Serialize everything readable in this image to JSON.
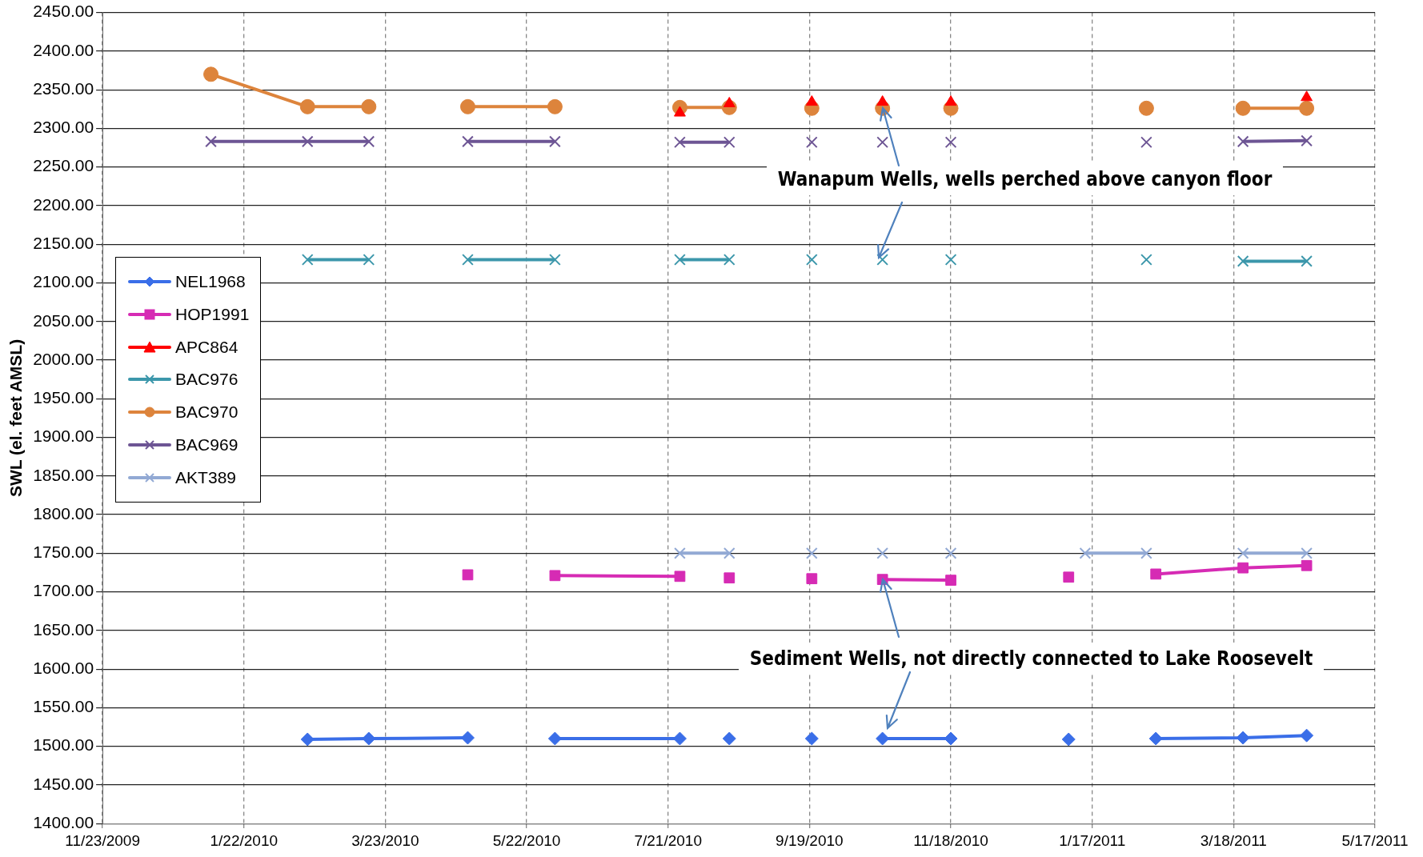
{
  "chart_data": {
    "type": "line",
    "ylabel": "SWL (el. feet AMSL)",
    "xlim": [
      "2009-11-23",
      "2011-05-17"
    ],
    "xticks": [
      {
        "value": "2009-11-23",
        "label": "11/23/2009"
      },
      {
        "value": "2010-01-22",
        "label": "1/22/2010"
      },
      {
        "value": "2010-03-23",
        "label": "3/23/2010"
      },
      {
        "value": "2010-05-22",
        "label": "5/22/2010"
      },
      {
        "value": "2010-07-21",
        "label": "7/21/2010"
      },
      {
        "value": "2010-09-19",
        "label": "9/19/2010"
      },
      {
        "value": "2010-11-18",
        "label": "11/18/2010"
      },
      {
        "value": "2011-01-17",
        "label": "1/17/2011"
      },
      {
        "value": "2011-03-18",
        "label": "3/18/2011"
      },
      {
        "value": "2011-05-17",
        "label": "5/17/2011"
      }
    ],
    "ylim": [
      1400,
      2450
    ],
    "yticks": [
      {
        "value": 1400,
        "label": "1400.00"
      },
      {
        "value": 1450,
        "label": "1450.00"
      },
      {
        "value": 1500,
        "label": "1500.00"
      },
      {
        "value": 1550,
        "label": "1550.00"
      },
      {
        "value": 1600,
        "label": "1600.00"
      },
      {
        "value": 1650,
        "label": "1650.00"
      },
      {
        "value": 1700,
        "label": "1700.00"
      },
      {
        "value": 1750,
        "label": "1750.00"
      },
      {
        "value": 1800,
        "label": "1800.00"
      },
      {
        "value": 1850,
        "label": "1850.00"
      },
      {
        "value": 1900,
        "label": "1900.00"
      },
      {
        "value": 1950,
        "label": "1950.00"
      },
      {
        "value": 2000,
        "label": "2000.00"
      },
      {
        "value": 2050,
        "label": "2050.00"
      },
      {
        "value": 2100,
        "label": "2100.00"
      },
      {
        "value": 2150,
        "label": "2150.00"
      },
      {
        "value": 2200,
        "label": "2200.00"
      },
      {
        "value": 2250,
        "label": "2250.00"
      },
      {
        "value": 2300,
        "label": "2300.00"
      },
      {
        "value": 2350,
        "label": "2350.00"
      },
      {
        "value": 2400,
        "label": "2400.00"
      },
      {
        "value": 2450,
        "label": "2450.00"
      }
    ],
    "grid": true,
    "legend": "left",
    "annotations": [
      {
        "text": "Wanapum Wells, wells perched above canyon floor",
        "x": "2010-10-20",
        "y": 2326
      },
      {
        "text": "Sediment  Wells, not directly connected to  Lake Roosevelt",
        "x": "2010-10-20",
        "y": 1716
      }
    ],
    "series": [
      {
        "name": "NEL1968",
        "color": "#3a6ee8",
        "marker": "diamond",
        "x": [
          "2010-02-18",
          "2010-03-16",
          "2010-04-27",
          "2010-05-15",
          "2010-06-03",
          "2010-07-26",
          "2010-08-05",
          "2010-08-16",
          "2010-09-01",
          "2010-09-20",
          "2010-10-05",
          "2010-10-20",
          "2010-11-18",
          "2010-12-20",
          "2011-01-07",
          "2011-01-25",
          "2011-02-13",
          "2011-03-22",
          "2011-04-18"
        ],
        "values": [
          1509,
          1510,
          1511,
          null,
          1510,
          1510,
          null,
          1510,
          null,
          1510,
          null,
          1510,
          1510,
          null,
          1509,
          null,
          1510,
          1511,
          1514
        ]
      },
      {
        "name": "HOP1991",
        "color": "#d62bb4",
        "marker": "square",
        "x": [
          "2010-04-27",
          "2010-05-15",
          "2010-06-03",
          "2010-07-26",
          "2010-08-05",
          "2010-08-16",
          "2010-09-01",
          "2010-09-20",
          "2010-10-05",
          "2010-10-20",
          "2010-11-18",
          "2010-12-20",
          "2011-01-07",
          "2011-01-25",
          "2011-02-13",
          "2011-03-22",
          "2011-04-18"
        ],
        "values": [
          1722,
          null,
          1721,
          1720,
          null,
          1718,
          null,
          1717,
          null,
          1716,
          1715,
          null,
          1719,
          null,
          1723,
          1731,
          1734
        ]
      },
      {
        "name": "APC864",
        "color": "#ff0000",
        "marker": "triangle",
        "x": [
          "2010-07-26",
          "2010-08-05",
          "2010-08-16",
          "2010-09-01",
          "2010-09-20",
          "2010-10-05",
          "2010-10-20",
          "2010-11-03",
          "2010-11-18",
          "2011-02-01",
          "2011-04-18"
        ],
        "values": [
          2320,
          null,
          2332,
          null,
          2334,
          null,
          2334,
          null,
          2334,
          null,
          2340
        ]
      },
      {
        "name": "BAC976",
        "color": "#3c97ab",
        "marker": "cross",
        "x": [
          "2010-02-18",
          "2010-03-16",
          "2010-04-06",
          "2010-04-27",
          "2010-06-03",
          "2010-07-01",
          "2010-07-26",
          "2010-08-16",
          "2010-09-01",
          "2010-09-20",
          "2010-10-05",
          "2010-10-20",
          "2010-11-03",
          "2010-11-18",
          "2010-12-28",
          "2011-02-09",
          "2011-03-01",
          "2011-03-22",
          "2011-04-18"
        ],
        "values": [
          2130,
          2130,
          null,
          2130,
          2130,
          null,
          2130,
          2130,
          null,
          2130,
          null,
          2130,
          null,
          2130,
          null,
          2130,
          null,
          2128,
          2128
        ]
      },
      {
        "name": "BAC970",
        "color": "#dd843c",
        "marker": "circle",
        "x": [
          "2010-01-08",
          "2010-02-18",
          "2010-03-16",
          "2010-04-06",
          "2010-04-27",
          "2010-06-03",
          "2010-07-01",
          "2010-07-26",
          "2010-08-16",
          "2010-09-01",
          "2010-09-20",
          "2010-10-05",
          "2010-10-20",
          "2010-11-03",
          "2010-11-18",
          "2010-12-28",
          "2011-02-09",
          "2011-03-01",
          "2011-03-22",
          "2011-04-18"
        ],
        "values": [
          2370,
          2328,
          2328,
          null,
          2328,
          2328,
          null,
          2327,
          2327,
          null,
          2326,
          null,
          2326,
          null,
          2326,
          null,
          2326,
          null,
          2326,
          2326
        ]
      },
      {
        "name": "BAC969",
        "color": "#6d5594",
        "marker": "cross",
        "x": [
          "2010-01-08",
          "2010-02-18",
          "2010-03-16",
          "2010-04-06",
          "2010-04-27",
          "2010-06-03",
          "2010-07-01",
          "2010-07-26",
          "2010-08-16",
          "2010-09-01",
          "2010-09-20",
          "2010-10-05",
          "2010-10-20",
          "2010-11-03",
          "2010-11-18",
          "2010-12-28",
          "2011-02-09",
          "2011-03-01",
          "2011-03-22",
          "2011-04-18"
        ],
        "values": [
          2283,
          2283,
          2283,
          null,
          2283,
          2283,
          null,
          2282,
          2282,
          null,
          2282,
          null,
          2282,
          null,
          2282,
          null,
          2282,
          null,
          2283,
          2284
        ]
      },
      {
        "name": "AKT389",
        "color": "#92a9d4",
        "marker": "cross",
        "x": [
          "2010-07-26",
          "2010-08-16",
          "2010-09-01",
          "2010-09-20",
          "2010-10-05",
          "2010-10-20",
          "2010-11-03",
          "2010-11-18",
          "2011-01-01",
          "2011-01-14",
          "2011-02-09",
          "2011-03-01",
          "2011-03-22",
          "2011-04-18"
        ],
        "values": [
          1750,
          1750,
          null,
          1750,
          null,
          1750,
          null,
          1750,
          null,
          1750,
          1750,
          null,
          1750,
          1750
        ]
      }
    ]
  }
}
